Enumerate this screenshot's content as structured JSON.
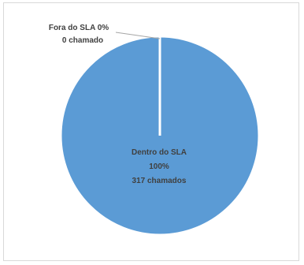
{
  "chart_data": {
    "type": "pie",
    "categories": [
      "Dentro do SLA",
      "Fora do SLA"
    ],
    "values": [
      317,
      0
    ],
    "colors": [
      "#5b9bd5",
      "#5b9bd5"
    ],
    "data_labels": [
      {
        "category": "Dentro do SLA",
        "lines": [
          "Dentro do SLA",
          "100%",
          "317 chamados"
        ]
      },
      {
        "category": "Fora do SLA",
        "lines": [
          "Fora do SLA 0%",
          "0 chamado"
        ]
      }
    ],
    "title": "",
    "legend": "none"
  }
}
